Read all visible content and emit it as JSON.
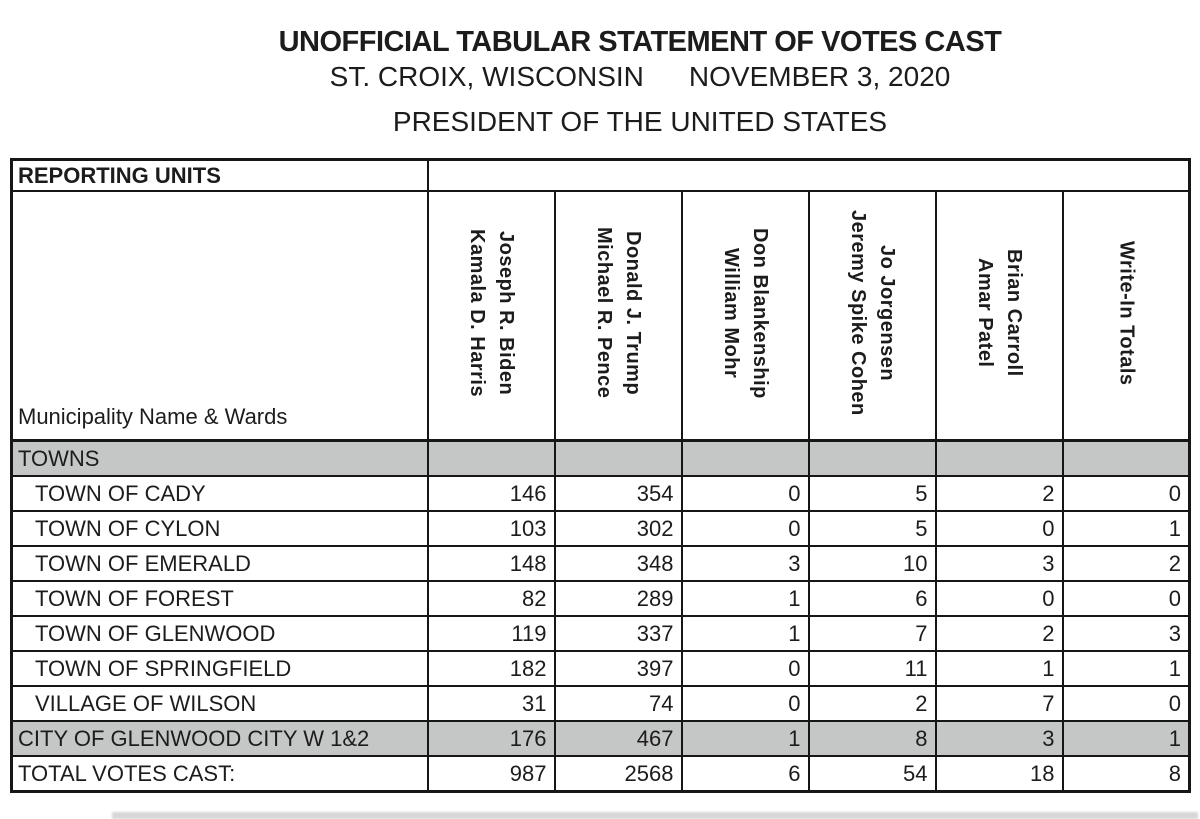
{
  "document": {
    "title": "UNOFFICIAL TABULAR STATEMENT OF VOTES CAST",
    "location": "ST. CROIX, WISCONSIN",
    "date": "NOVEMBER 3, 2020",
    "office": "PRESIDENT OF THE UNITED STATES"
  },
  "table": {
    "reporting_units_label": "REPORTING UNITS",
    "municipality_label": "Municipality Name & Wards",
    "candidates": [
      {
        "line1": "Joseph R. Biden",
        "line2": "Kamala D. Harris"
      },
      {
        "line1": "Donald J. Trump",
        "line2": "Michael R. Pence"
      },
      {
        "line1": "Don Blankenship",
        "line2": "William Mohr"
      },
      {
        "line1": "Jo Jorgensen",
        "line2": "Jeremy Spike Cohen"
      },
      {
        "line1": "Brian Carroll",
        "line2": "Amar Patel"
      },
      {
        "line1": "Write-In Totals",
        "line2": ""
      }
    ],
    "section_label": "TOWNS",
    "rows": [
      {
        "label": "TOWN OF CADY",
        "indent": true,
        "highlight": false,
        "values": [
          "146",
          "354",
          "0",
          "5",
          "2",
          "0"
        ]
      },
      {
        "label": "TOWN OF CYLON",
        "indent": true,
        "highlight": false,
        "values": [
          "103",
          "302",
          "0",
          "5",
          "0",
          "1"
        ]
      },
      {
        "label": "TOWN OF EMERALD",
        "indent": true,
        "highlight": false,
        "values": [
          "148",
          "348",
          "3",
          "10",
          "3",
          "2"
        ]
      },
      {
        "label": "TOWN OF FOREST",
        "indent": true,
        "highlight": false,
        "values": [
          "82",
          "289",
          "1",
          "6",
          "0",
          "0"
        ]
      },
      {
        "label": "TOWN OF GLENWOOD",
        "indent": true,
        "highlight": false,
        "values": [
          "119",
          "337",
          "1",
          "7",
          "2",
          "3"
        ]
      },
      {
        "label": "TOWN OF SPRINGFIELD",
        "indent": true,
        "highlight": false,
        "values": [
          "182",
          "397",
          "0",
          "11",
          "1",
          "1"
        ]
      },
      {
        "label": "VILLAGE OF WILSON",
        "indent": true,
        "highlight": false,
        "values": [
          "31",
          "74",
          "0",
          "2",
          "7",
          "0"
        ]
      },
      {
        "label": "CITY OF GLENWOOD CITY W 1&2",
        "indent": false,
        "highlight": true,
        "values": [
          "176",
          "467",
          "1",
          "8",
          "3",
          "1"
        ]
      },
      {
        "label": "TOTAL VOTES CAST:",
        "indent": false,
        "highlight": false,
        "values": [
          "987",
          "2568",
          "6",
          "54",
          "18",
          "8"
        ]
      }
    ]
  },
  "colors": {
    "band_gray": "#c5c6c6",
    "border_black": "#161616",
    "text": "#1c1c1c",
    "page_bg": "#ffffff",
    "bottom_strip_gray": "#d7d7d7"
  }
}
